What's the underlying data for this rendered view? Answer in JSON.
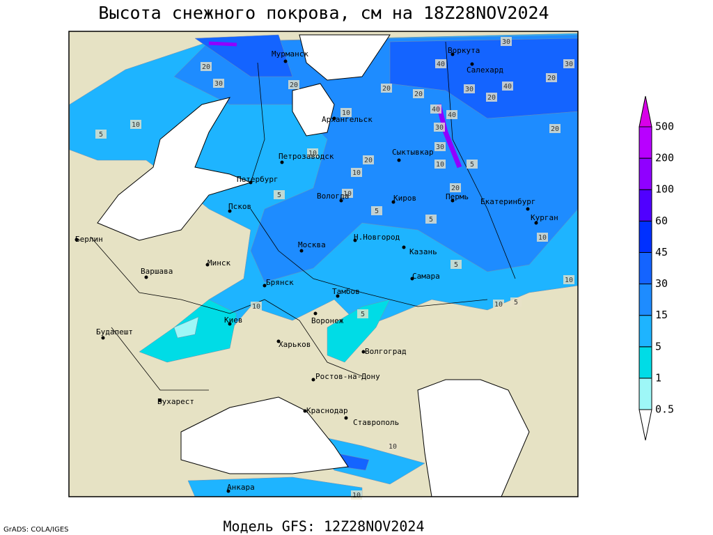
{
  "title": "Высота снежного покрова, см на 18Z28NOV2024",
  "footer": "Модель GFS: 12Z28NOV2024",
  "credit": "GrADS: COLA/IGES",
  "legend": {
    "levels": [
      0.5,
      1,
      5,
      15,
      30,
      45,
      60,
      100,
      200,
      500
    ],
    "colors": [
      "#ffffff",
      "#9ef7f7",
      "#00dce6",
      "#1eb4ff",
      "#1e8cff",
      "#1464ff",
      "#0030ff",
      "#5000ff",
      "#9000ff",
      "#b800ff",
      "#d800e8"
    ]
  },
  "cities": [
    "Мурманск",
    "Воркута",
    "Салехард",
    "Архангельск",
    "Петрозаводск",
    "Сыктывкар",
    "Петербург",
    "Вологда",
    "Киров",
    "Пермь",
    "Екатеринбург",
    "Курган",
    "Псков",
    "Берлин",
    "Н.Новгород",
    "Казань",
    "Москва",
    "Минск",
    "Варшава",
    "Самара",
    "Брянск",
    "Тамбов",
    "Киев",
    "Воронеж",
    "Будапешт",
    "Харьков",
    "Волгоград",
    "Ростов-на-Дону",
    "Бухарест",
    "Краснодар",
    "Ставрополь",
    "Анкара"
  ],
  "contour_labels": [
    20,
    30,
    20,
    10,
    20,
    20,
    40,
    30,
    40,
    20,
    20,
    30,
    20,
    30,
    40,
    40,
    30,
    30,
    10,
    5,
    20,
    20,
    10,
    10,
    10,
    5,
    5,
    5,
    5,
    10,
    10,
    10,
    5,
    10,
    5,
    10,
    5,
    10,
    10
  ]
}
